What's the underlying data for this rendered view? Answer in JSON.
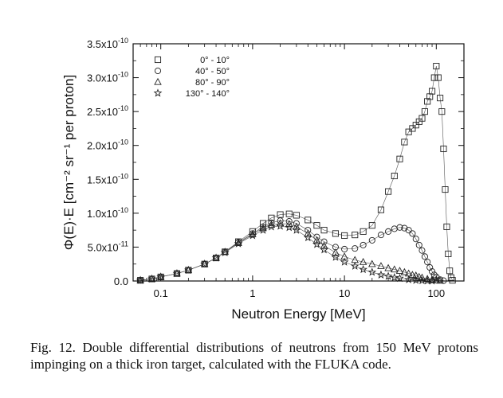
{
  "chart_data": {
    "type": "scatter",
    "xlabel": "Neutron Energy [MeV]",
    "ylabel": "Φ(E)·E [cm⁻² sr⁻¹ per proton]",
    "x_scale": "log",
    "xlim": [
      0.05,
      200
    ],
    "ylim": [
      0,
      3.5e-10
    ],
    "x_ticks": [
      {
        "value": 0.1,
        "label": "0.1"
      },
      {
        "value": 1,
        "label": "1"
      },
      {
        "value": 10,
        "label": "10"
      },
      {
        "value": 100,
        "label": "100"
      }
    ],
    "y_ticks": [
      {
        "value": 0,
        "label": "0.0"
      },
      {
        "value": 5e-11,
        "mant": "5.0x10",
        "exp": "-11"
      },
      {
        "value": 1e-10,
        "mant": "1.0x10",
        "exp": "-10"
      },
      {
        "value": 1.5e-10,
        "mant": "1.5x10",
        "exp": "-10"
      },
      {
        "value": 2e-10,
        "mant": "2.0x10",
        "exp": "-10"
      },
      {
        "value": 2.5e-10,
        "mant": "2.5x10",
        "exp": "-10"
      },
      {
        "value": 3e-10,
        "mant": "3.0x10",
        "exp": "-10"
      },
      {
        "value": 3.5e-10,
        "mant": "3.5x10",
        "exp": "-10"
      }
    ],
    "legend_position": "top-left",
    "series": [
      {
        "name": "0° - 10°",
        "marker": "square",
        "x": [
          0.06,
          0.08,
          0.1,
          0.15,
          0.2,
          0.3,
          0.4,
          0.5,
          0.7,
          1,
          1.3,
          1.6,
          2,
          2.5,
          3,
          4,
          5,
          6,
          8,
          10,
          13,
          16,
          20,
          25,
          30,
          35,
          40,
          45,
          50,
          55,
          60,
          65,
          70,
          75,
          80,
          85,
          90,
          95,
          100,
          105,
          110,
          115,
          120,
          125,
          130,
          135,
          140,
          145,
          150
        ],
        "y": [
          1e-12,
          3e-12,
          6e-12,
          1.1e-11,
          1.6e-11,
          2.5e-11,
          3.4e-11,
          4.3e-11,
          5.8e-11,
          7.3e-11,
          8.5e-11,
          9.3e-11,
          9.8e-11,
          9.9e-11,
          9.7e-11,
          9e-11,
          8.2e-11,
          7.5e-11,
          7e-11,
          6.7e-11,
          6.8e-11,
          7.3e-11,
          8.2e-11,
          1.05e-10,
          1.32e-10,
          1.55e-10,
          1.8e-10,
          2.05e-10,
          2.2e-10,
          2.25e-10,
          2.3e-10,
          2.35e-10,
          2.4e-10,
          2.5e-10,
          2.65e-10,
          2.72e-10,
          2.8e-10,
          3e-10,
          3.17e-10,
          3e-10,
          2.7e-10,
          2.5e-10,
          1.95e-10,
          1.35e-10,
          8e-11,
          4e-11,
          1.5e-11,
          5e-12,
          1e-12
        ]
      },
      {
        "name": "40° - 50°",
        "marker": "circle",
        "x": [
          0.06,
          0.08,
          0.1,
          0.15,
          0.2,
          0.3,
          0.4,
          0.5,
          0.7,
          1,
          1.3,
          1.6,
          2,
          2.5,
          3,
          4,
          5,
          6,
          8,
          10,
          13,
          16,
          20,
          25,
          30,
          35,
          40,
          45,
          50,
          55,
          60,
          65,
          70,
          75,
          80,
          85,
          90,
          95,
          100,
          110,
          120
        ],
        "y": [
          1e-12,
          3e-12,
          6e-12,
          1.1e-11,
          1.6e-11,
          2.5e-11,
          3.4e-11,
          4.3e-11,
          5.7e-11,
          7e-11,
          8e-11,
          8.6e-11,
          8.9e-11,
          8.8e-11,
          8.5e-11,
          7.5e-11,
          6.5e-11,
          5.8e-11,
          5e-11,
          4.7e-11,
          4.8e-11,
          5.3e-11,
          6e-11,
          6.8e-11,
          7.3e-11,
          7.7e-11,
          7.9e-11,
          7.8e-11,
          7.5e-11,
          7e-11,
          6.2e-11,
          5.3e-11,
          4.5e-11,
          3.6e-11,
          2.8e-11,
          2e-11,
          1.4e-11,
          9e-12,
          6e-12,
          2e-12,
          5e-13
        ]
      },
      {
        "name": "80° - 90°",
        "marker": "triangle",
        "x": [
          0.06,
          0.08,
          0.1,
          0.15,
          0.2,
          0.3,
          0.4,
          0.5,
          0.7,
          1,
          1.3,
          1.6,
          2,
          2.5,
          3,
          4,
          5,
          6,
          8,
          10,
          13,
          16,
          20,
          25,
          30,
          35,
          40,
          45,
          50,
          55,
          60,
          65,
          70,
          80,
          90,
          100,
          110
        ],
        "y": [
          1e-12,
          3e-12,
          6e-12,
          1.1e-11,
          1.6e-11,
          2.5e-11,
          3.4e-11,
          4.3e-11,
          5.6e-11,
          6.9e-11,
          7.8e-11,
          8.3e-11,
          8.5e-11,
          8.4e-11,
          8e-11,
          7e-11,
          6e-11,
          5.2e-11,
          4.2e-11,
          3.6e-11,
          3.1e-11,
          2.8e-11,
          2.5e-11,
          2.2e-11,
          1.9e-11,
          1.7e-11,
          1.5e-11,
          1.3e-11,
          1.1e-11,
          9e-12,
          8e-12,
          6e-12,
          5e-12,
          3e-12,
          2e-12,
          1e-12,
          5e-13
        ]
      },
      {
        "name": "130° - 140°",
        "marker": "star",
        "x": [
          0.06,
          0.08,
          0.1,
          0.15,
          0.2,
          0.3,
          0.4,
          0.5,
          0.7,
          1,
          1.3,
          1.6,
          2,
          2.5,
          3,
          4,
          5,
          6,
          8,
          10,
          13,
          16,
          20,
          25,
          30,
          35,
          40,
          50,
          60,
          70,
          80,
          90
        ],
        "y": [
          1e-12,
          3e-12,
          6e-12,
          1.1e-11,
          1.6e-11,
          2.5e-11,
          3.4e-11,
          4.2e-11,
          5.5e-11,
          6.7e-11,
          7.5e-11,
          8e-11,
          8.1e-11,
          7.9e-11,
          7.5e-11,
          6.4e-11,
          5.4e-11,
          4.6e-11,
          3.5e-11,
          2.8e-11,
          2.2e-11,
          1.7e-11,
          1.3e-11,
          9e-12,
          7e-12,
          5e-12,
          4e-12,
          2e-12,
          1e-12,
          5e-13,
          2e-13,
          1e-13
        ]
      }
    ]
  },
  "caption": "Fig. 12. Double differential distributions of neutrons from 150 MeV protons impinging on a thick iron target, calculated with the FLUKA code."
}
